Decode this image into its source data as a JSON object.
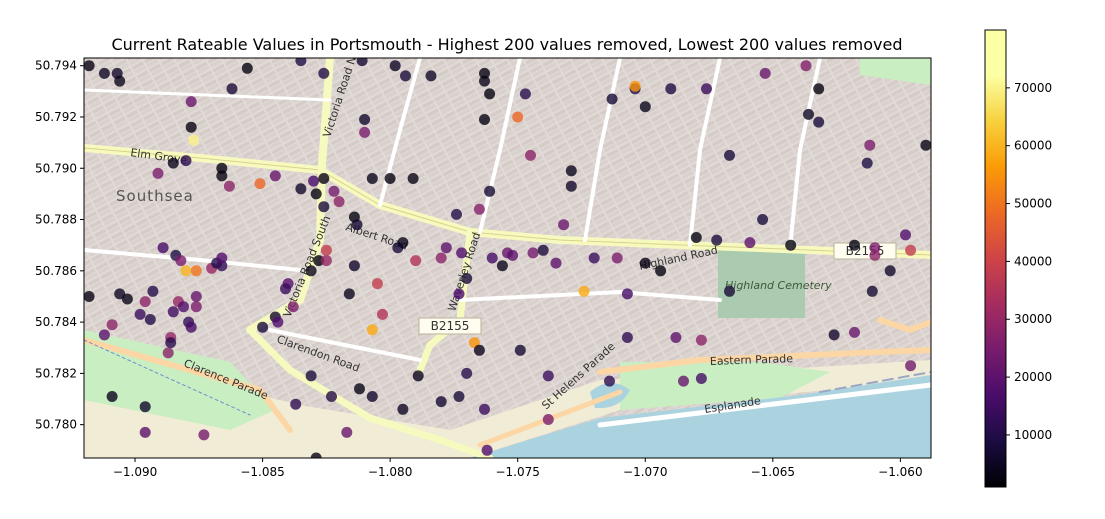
{
  "chart_data": {
    "type": "scatter",
    "title": "Current Rateable Values in Portsmouth - Highest 200 values removed, Lowest  200 values removed",
    "xlabel": "",
    "ylabel": "",
    "xlim": [
      -1.092,
      -1.0588
    ],
    "ylim": [
      50.7787,
      50.7943
    ],
    "x_ticks": [
      -1.09,
      -1.085,
      -1.08,
      -1.075,
      -1.07,
      -1.065,
      -1.06
    ],
    "x_tick_labels": [
      "−1.090",
      "−1.085",
      "−1.080",
      "−1.075",
      "−1.070",
      "−1.065",
      "−1.060"
    ],
    "y_ticks": [
      50.78,
      50.782,
      50.784,
      50.786,
      50.788,
      50.79,
      50.792,
      50.794
    ],
    "y_tick_labels": [
      "50.780",
      "50.782",
      "50.784",
      "50.786",
      "50.788",
      "50.790",
      "50.792",
      "50.794"
    ],
    "colorbar": {
      "colormap": "inferno",
      "range": [
        1000,
        80000
      ],
      "ticks": [
        10000,
        20000,
        30000,
        40000,
        50000,
        60000,
        70000
      ],
      "tick_labels": [
        "10000",
        "20000",
        "30000",
        "40000",
        "50000",
        "60000",
        "70000"
      ]
    },
    "basemap": {
      "labels": [
        "Southsea",
        "Elm Grove",
        "Albert Road",
        "Victoria Road North",
        "Victoria Road South",
        "Waverley Road",
        "Highland Road",
        "Highland Cemetery",
        "Clarendon Road",
        "Clarence Parade",
        "St Helens Parade",
        "Eastern Parade",
        "Esplanade",
        "B2155",
        "B2155",
        "B2155"
      ],
      "colors": {
        "land": "#e7dfdb",
        "residential": "#d6cfcb",
        "water": "#aad3df",
        "park": "#c8facc",
        "cemetery": "#aacbaf",
        "road_major": "#f7fabf",
        "road_secondary": "#fcd6a4",
        "beach": "#fff1ba"
      }
    },
    "points": [
      {
        "x": -1.0918,
        "y": 50.794,
        "v": 3000
      },
      {
        "x": -1.0912,
        "y": 50.7937,
        "v": 5000
      },
      {
        "x": -1.0907,
        "y": 50.7937,
        "v": 6000
      },
      {
        "x": -1.0906,
        "y": 50.7934,
        "v": 4000
      },
      {
        "x": -1.0856,
        "y": 50.7939,
        "v": 2500
      },
      {
        "x": -1.0862,
        "y": 50.7931,
        "v": 8000
      },
      {
        "x": -1.0835,
        "y": 50.7942,
        "v": 9000
      },
      {
        "x": -1.0826,
        "y": 50.7937,
        "v": 10000
      },
      {
        "x": -1.0811,
        "y": 50.7942,
        "v": 7000
      },
      {
        "x": -1.0798,
        "y": 50.794,
        "v": 5000
      },
      {
        "x": -1.0794,
        "y": 50.7936,
        "v": 8000
      },
      {
        "x": -1.0784,
        "y": 50.7936,
        "v": 6000
      },
      {
        "x": -1.0763,
        "y": 50.7934,
        "v": 3500
      },
      {
        "x": -1.0763,
        "y": 50.7937,
        "v": 3000
      },
      {
        "x": -1.0761,
        "y": 50.7929,
        "v": 2500
      },
      {
        "x": -1.0747,
        "y": 50.7929,
        "v": 11000
      },
      {
        "x": -1.0713,
        "y": 50.7927,
        "v": 7000
      },
      {
        "x": -1.0704,
        "y": 50.7931,
        "v": 10000
      },
      {
        "x": -1.0704,
        "y": 50.7932,
        "v": 55000
      },
      {
        "x": -1.07,
        "y": 50.7924,
        "v": 4000
      },
      {
        "x": -1.069,
        "y": 50.7931,
        "v": 9000
      },
      {
        "x": -1.0676,
        "y": 50.7931,
        "v": 14000
      },
      {
        "x": -1.0653,
        "y": 50.7937,
        "v": 22000
      },
      {
        "x": -1.0637,
        "y": 50.794,
        "v": 26000
      },
      {
        "x": -1.0632,
        "y": 50.7931,
        "v": 2500
      },
      {
        "x": -1.0636,
        "y": 50.7921,
        "v": 5000
      },
      {
        "x": -1.0632,
        "y": 50.7918,
        "v": 8000
      },
      {
        "x": -1.059,
        "y": 50.7909,
        "v": 3000
      },
      {
        "x": -1.0878,
        "y": 50.7926,
        "v": 22000
      },
      {
        "x": -1.0878,
        "y": 50.7916,
        "v": 3000
      },
      {
        "x": -1.0877,
        "y": 50.7911,
        "v": 70000
      },
      {
        "x": -1.081,
        "y": 50.7914,
        "v": 25000
      },
      {
        "x": -1.081,
        "y": 50.7919,
        "v": 6000
      },
      {
        "x": -1.0763,
        "y": 50.7919,
        "v": 2500
      },
      {
        "x": -1.075,
        "y": 50.792,
        "v": 48000
      },
      {
        "x": -1.0745,
        "y": 50.7905,
        "v": 28000
      },
      {
        "x": -1.0729,
        "y": 50.7899,
        "v": 4000
      },
      {
        "x": -1.0667,
        "y": 50.7905,
        "v": 8000
      },
      {
        "x": -1.0612,
        "y": 50.7909,
        "v": 25000
      },
      {
        "x": -1.0613,
        "y": 50.7902,
        "v": 9000
      },
      {
        "x": -1.0891,
        "y": 50.7898,
        "v": 25000
      },
      {
        "x": -1.0885,
        "y": 50.7902,
        "v": 4000
      },
      {
        "x": -1.088,
        "y": 50.7903,
        "v": 12000
      },
      {
        "x": -1.0866,
        "y": 50.79,
        "v": 2500
      },
      {
        "x": -1.0866,
        "y": 50.7897,
        "v": 3000
      },
      {
        "x": -1.0863,
        "y": 50.7893,
        "v": 28000
      },
      {
        "x": -1.0851,
        "y": 50.7894,
        "v": 48000
      },
      {
        "x": -1.0845,
        "y": 50.7897,
        "v": 22000
      },
      {
        "x": -1.0835,
        "y": 50.7892,
        "v": 6000
      },
      {
        "x": -1.083,
        "y": 50.7895,
        "v": 16000
      },
      {
        "x": -1.0826,
        "y": 50.7896,
        "v": 3000
      },
      {
        "x": -1.0829,
        "y": 50.789,
        "v": 2500
      },
      {
        "x": -1.0822,
        "y": 50.7891,
        "v": 24000
      },
      {
        "x": -1.082,
        "y": 50.7887,
        "v": 28000
      },
      {
        "x": -1.0826,
        "y": 50.7885,
        "v": 8000
      },
      {
        "x": -1.0807,
        "y": 50.7896,
        "v": 4000
      },
      {
        "x": -1.08,
        "y": 50.7896,
        "v": 2500
      },
      {
        "x": -1.0791,
        "y": 50.7896,
        "v": 3500
      },
      {
        "x": -1.0761,
        "y": 50.7891,
        "v": 7000
      },
      {
        "x": -1.0729,
        "y": 50.7893,
        "v": 6000
      },
      {
        "x": -1.0814,
        "y": 50.7881,
        "v": 2500
      },
      {
        "x": -1.0813,
        "y": 50.7878,
        "v": 7000
      },
      {
        "x": -1.0774,
        "y": 50.7882,
        "v": 10000
      },
      {
        "x": -1.0765,
        "y": 50.7884,
        "v": 27000
      },
      {
        "x": -1.0732,
        "y": 50.7878,
        "v": 22000
      },
      {
        "x": -1.0654,
        "y": 50.788,
        "v": 8000
      },
      {
        "x": -1.068,
        "y": 50.7873,
        "v": 2500
      },
      {
        "x": -1.0672,
        "y": 50.7872,
        "v": 8000
      },
      {
        "x": -1.0659,
        "y": 50.7871,
        "v": 20000
      },
      {
        "x": -1.0643,
        "y": 50.787,
        "v": 2000
      },
      {
        "x": -1.0618,
        "y": 50.787,
        "v": 2500
      },
      {
        "x": -1.061,
        "y": 50.7869,
        "v": 25000
      },
      {
        "x": -1.0598,
        "y": 50.7874,
        "v": 18000
      },
      {
        "x": -1.0596,
        "y": 50.7868,
        "v": 38000
      },
      {
        "x": -1.0604,
        "y": 50.786,
        "v": 6000
      },
      {
        "x": -1.061,
        "y": 50.7866,
        "v": 28000
      },
      {
        "x": -1.0611,
        "y": 50.7852,
        "v": 7000
      },
      {
        "x": -1.0889,
        "y": 50.7869,
        "v": 16000
      },
      {
        "x": -1.0884,
        "y": 50.7866,
        "v": 9000
      },
      {
        "x": -1.0882,
        "y": 50.7864,
        "v": 25000
      },
      {
        "x": -1.088,
        "y": 50.786,
        "v": 60000
      },
      {
        "x": -1.0876,
        "y": 50.786,
        "v": 50000
      },
      {
        "x": -1.087,
        "y": 50.7861,
        "v": 30000
      },
      {
        "x": -1.0868,
        "y": 50.7863,
        "v": 10000
      },
      {
        "x": -1.0866,
        "y": 50.7862,
        "v": 13000
      },
      {
        "x": -1.0866,
        "y": 50.7865,
        "v": 18000
      },
      {
        "x": -1.0893,
        "y": 50.7852,
        "v": 10000
      },
      {
        "x": -1.0906,
        "y": 50.7851,
        "v": 5000
      },
      {
        "x": -1.0903,
        "y": 50.7849,
        "v": 3500
      },
      {
        "x": -1.0918,
        "y": 50.785,
        "v": 3000
      },
      {
        "x": -1.0896,
        "y": 50.7848,
        "v": 28000
      },
      {
        "x": -1.0883,
        "y": 50.7848,
        "v": 30000
      },
      {
        "x": -1.0876,
        "y": 50.785,
        "v": 22000
      },
      {
        "x": -1.0876,
        "y": 50.7846,
        "v": 25000
      },
      {
        "x": -1.0881,
        "y": 50.7846,
        "v": 18000
      },
      {
        "x": -1.0885,
        "y": 50.7844,
        "v": 15000
      },
      {
        "x": -1.0898,
        "y": 50.7843,
        "v": 14000
      },
      {
        "x": -1.0894,
        "y": 50.7841,
        "v": 10000
      },
      {
        "x": -1.0879,
        "y": 50.784,
        "v": 13000
      },
      {
        "x": -1.0878,
        "y": 50.7838,
        "v": 16000
      },
      {
        "x": -1.0909,
        "y": 50.7839,
        "v": 28000
      },
      {
        "x": -1.0912,
        "y": 50.7835,
        "v": 20000
      },
      {
        "x": -1.0886,
        "y": 50.7834,
        "v": 30000
      },
      {
        "x": -1.0886,
        "y": 50.7832,
        "v": 11000
      },
      {
        "x": -1.085,
        "y": 50.7838,
        "v": 8000
      },
      {
        "x": -1.0845,
        "y": 50.7842,
        "v": 6000
      },
      {
        "x": -1.084,
        "y": 50.7855,
        "v": 19000
      },
      {
        "x": -1.0841,
        "y": 50.7853,
        "v": 14000
      },
      {
        "x": -1.0838,
        "y": 50.7846,
        "v": 25000
      },
      {
        "x": -1.0831,
        "y": 50.786,
        "v": 4000
      },
      {
        "x": -1.0828,
        "y": 50.7864,
        "v": 2500
      },
      {
        "x": -1.0825,
        "y": 50.7864,
        "v": 30000
      },
      {
        "x": -1.0825,
        "y": 50.7868,
        "v": 38000
      },
      {
        "x": -1.0816,
        "y": 50.7851,
        "v": 4000
      },
      {
        "x": -1.0814,
        "y": 50.7862,
        "v": 6000
      },
      {
        "x": -1.0805,
        "y": 50.7855,
        "v": 38000
      },
      {
        "x": -1.0803,
        "y": 50.7843,
        "v": 35000
      },
      {
        "x": -1.0807,
        "y": 50.7837,
        "v": 58000
      },
      {
        "x": -1.079,
        "y": 50.7864,
        "v": 35000
      },
      {
        "x": -1.0797,
        "y": 50.7869,
        "v": 8000
      },
      {
        "x": -1.0795,
        "y": 50.7871,
        "v": 4000
      },
      {
        "x": -1.078,
        "y": 50.7865,
        "v": 28000
      },
      {
        "x": -1.0778,
        "y": 50.7869,
        "v": 20000
      },
      {
        "x": -1.077,
        "y": 50.7857,
        "v": 8000
      },
      {
        "x": -1.0773,
        "y": 50.7851,
        "v": 17000
      },
      {
        "x": -1.0772,
        "y": 50.7867,
        "v": 18000
      },
      {
        "x": -1.0767,
        "y": 50.7832,
        "v": 55000
      },
      {
        "x": -1.076,
        "y": 50.7865,
        "v": 16000
      },
      {
        "x": -1.0756,
        "y": 50.7862,
        "v": 4000
      },
      {
        "x": -1.0754,
        "y": 50.7867,
        "v": 22000
      },
      {
        "x": -1.0752,
        "y": 50.7866,
        "v": 20000
      },
      {
        "x": -1.0744,
        "y": 50.7867,
        "v": 24000
      },
      {
        "x": -1.074,
        "y": 50.7868,
        "v": 8000
      },
      {
        "x": -1.0735,
        "y": 50.7863,
        "v": 20000
      },
      {
        "x": -1.072,
        "y": 50.7865,
        "v": 14000
      },
      {
        "x": -1.0711,
        "y": 50.7865,
        "v": 25000
      },
      {
        "x": -1.07,
        "y": 50.7863,
        "v": 3000
      },
      {
        "x": -1.0694,
        "y": 50.786,
        "v": 2500
      },
      {
        "x": -1.0724,
        "y": 50.7852,
        "v": 58000
      },
      {
        "x": -1.0707,
        "y": 50.7851,
        "v": 16000
      },
      {
        "x": -1.0707,
        "y": 50.7834,
        "v": 12000
      },
      {
        "x": -1.0688,
        "y": 50.7834,
        "v": 20000
      },
      {
        "x": -1.0678,
        "y": 50.7833,
        "v": 28000
      },
      {
        "x": -1.0626,
        "y": 50.7835,
        "v": 6000
      },
      {
        "x": -1.0618,
        "y": 50.7836,
        "v": 22000
      },
      {
        "x": -1.0596,
        "y": 50.7823,
        "v": 24000
      },
      {
        "x": -1.0667,
        "y": 50.7852,
        "v": 8000
      },
      {
        "x": -1.0749,
        "y": 50.7829,
        "v": 7000
      },
      {
        "x": -1.0765,
        "y": 50.7829,
        "v": 4000
      },
      {
        "x": -1.077,
        "y": 50.782,
        "v": 11000
      },
      {
        "x": -1.0789,
        "y": 50.7819,
        "v": 4000
      },
      {
        "x": -1.0812,
        "y": 50.7814,
        "v": 3500
      },
      {
        "x": -1.0831,
        "y": 50.7819,
        "v": 8000
      },
      {
        "x": -1.0823,
        "y": 50.7811,
        "v": 10000
      },
      {
        "x": -1.0837,
        "y": 50.7808,
        "v": 12000
      },
      {
        "x": -1.0807,
        "y": 50.7811,
        "v": 6000
      },
      {
        "x": -1.0795,
        "y": 50.7806,
        "v": 5000
      },
      {
        "x": -1.078,
        "y": 50.7809,
        "v": 7000
      },
      {
        "x": -1.0773,
        "y": 50.7811,
        "v": 8000
      },
      {
        "x": -1.0763,
        "y": 50.7806,
        "v": 14000
      },
      {
        "x": -1.0738,
        "y": 50.7819,
        "v": 14000
      },
      {
        "x": -1.0738,
        "y": 50.7802,
        "v": 25000
      },
      {
        "x": -1.0714,
        "y": 50.7817,
        "v": 12000
      },
      {
        "x": -1.0678,
        "y": 50.7818,
        "v": 16000
      },
      {
        "x": -1.0685,
        "y": 50.7817,
        "v": 22000
      },
      {
        "x": -1.0896,
        "y": 50.7807,
        "v": 6000
      },
      {
        "x": -1.0909,
        "y": 50.7811,
        "v": 4000
      },
      {
        "x": -1.0896,
        "y": 50.7797,
        "v": 20000
      },
      {
        "x": -1.0873,
        "y": 50.7796,
        "v": 24000
      },
      {
        "x": -1.0829,
        "y": 50.7787,
        "v": 3000
      },
      {
        "x": -1.0817,
        "y": 50.7797,
        "v": 22000
      },
      {
        "x": -1.0762,
        "y": 50.779,
        "v": 18000
      },
      {
        "x": -1.0887,
        "y": 50.7828,
        "v": 28000
      },
      {
        "x": -1.0844,
        "y": 50.784,
        "v": 18000
      }
    ]
  }
}
